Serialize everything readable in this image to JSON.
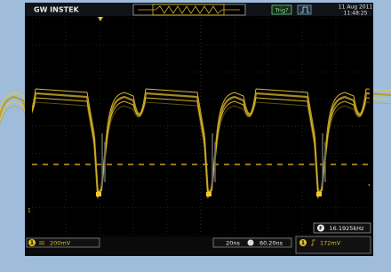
{
  "header": {
    "brand": "GW INSTEK",
    "trigger_status": "Trig?",
    "date": "11 Aug 2011",
    "time": "11:48:25"
  },
  "status": {
    "channel": "1",
    "volts_per_div": "200mV",
    "time_per_div": "20ns",
    "horizontal_position": "60.20ns",
    "frequency_icon": "F",
    "frequency": "16.1925kHz",
    "trigger_source": "1",
    "trigger_level": "172mV"
  },
  "markers": {
    "ground": "1"
  }
}
